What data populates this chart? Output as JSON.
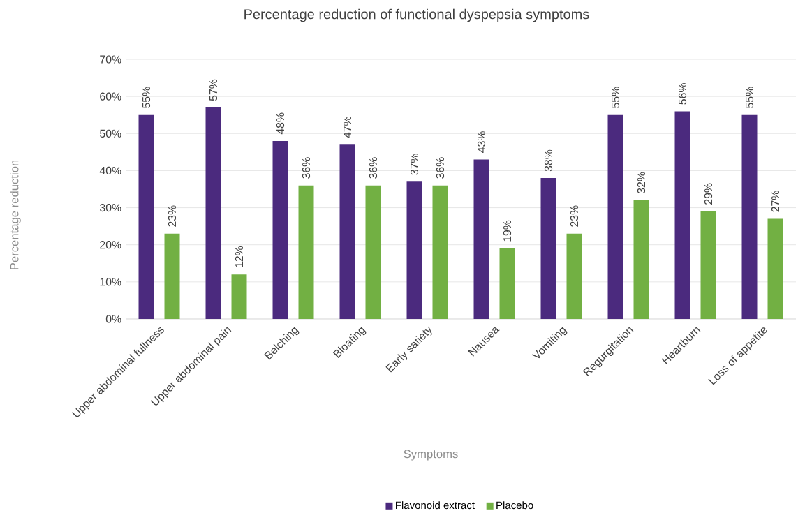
{
  "chart_data": {
    "type": "bar",
    "title": "Percentage reduction of functional dyspepsia symptoms",
    "xlabel": "Symptoms",
    "ylabel": "Percentage reduction",
    "categories": [
      "Upper abdominal fullness",
      "Upper abdominal pain",
      "Belching",
      "Bloating",
      "Early satiety",
      "Nausea",
      "Vomiting",
      "Regurgitation",
      "Heartburn",
      "Loss of appetite"
    ],
    "series": [
      {
        "name": "Flavonoid extract",
        "color": "#4b2a7e",
        "values": [
          55,
          57,
          48,
          47,
          37,
          43,
          38,
          55,
          56,
          55
        ],
        "value_labels": [
          "55%",
          "57%",
          "48%",
          "47%",
          "37%",
          "43%",
          "38%",
          "55%",
          "56%",
          "55%"
        ]
      },
      {
        "name": "Placebo",
        "color": "#72b043",
        "values": [
          23,
          12,
          36,
          36,
          36,
          19,
          23,
          32,
          29,
          27
        ],
        "value_labels": [
          "23%",
          "12%",
          "36%",
          "36%",
          "36%",
          "19%",
          "23%",
          "32%",
          "29%",
          "27%"
        ]
      }
    ],
    "ylim": [
      0,
      70
    ],
    "yticks": [
      {
        "value": 0,
        "label": "0%"
      },
      {
        "value": 10,
        "label": "10%"
      },
      {
        "value": 20,
        "label": "20%"
      },
      {
        "value": 30,
        "label": "30%"
      },
      {
        "value": 40,
        "label": "40%"
      },
      {
        "value": 50,
        "label": "50%"
      },
      {
        "value": 60,
        "label": "60%"
      },
      {
        "value": 70,
        "label": "70%"
      }
    ],
    "grid": "y",
    "legend": "bottom"
  }
}
